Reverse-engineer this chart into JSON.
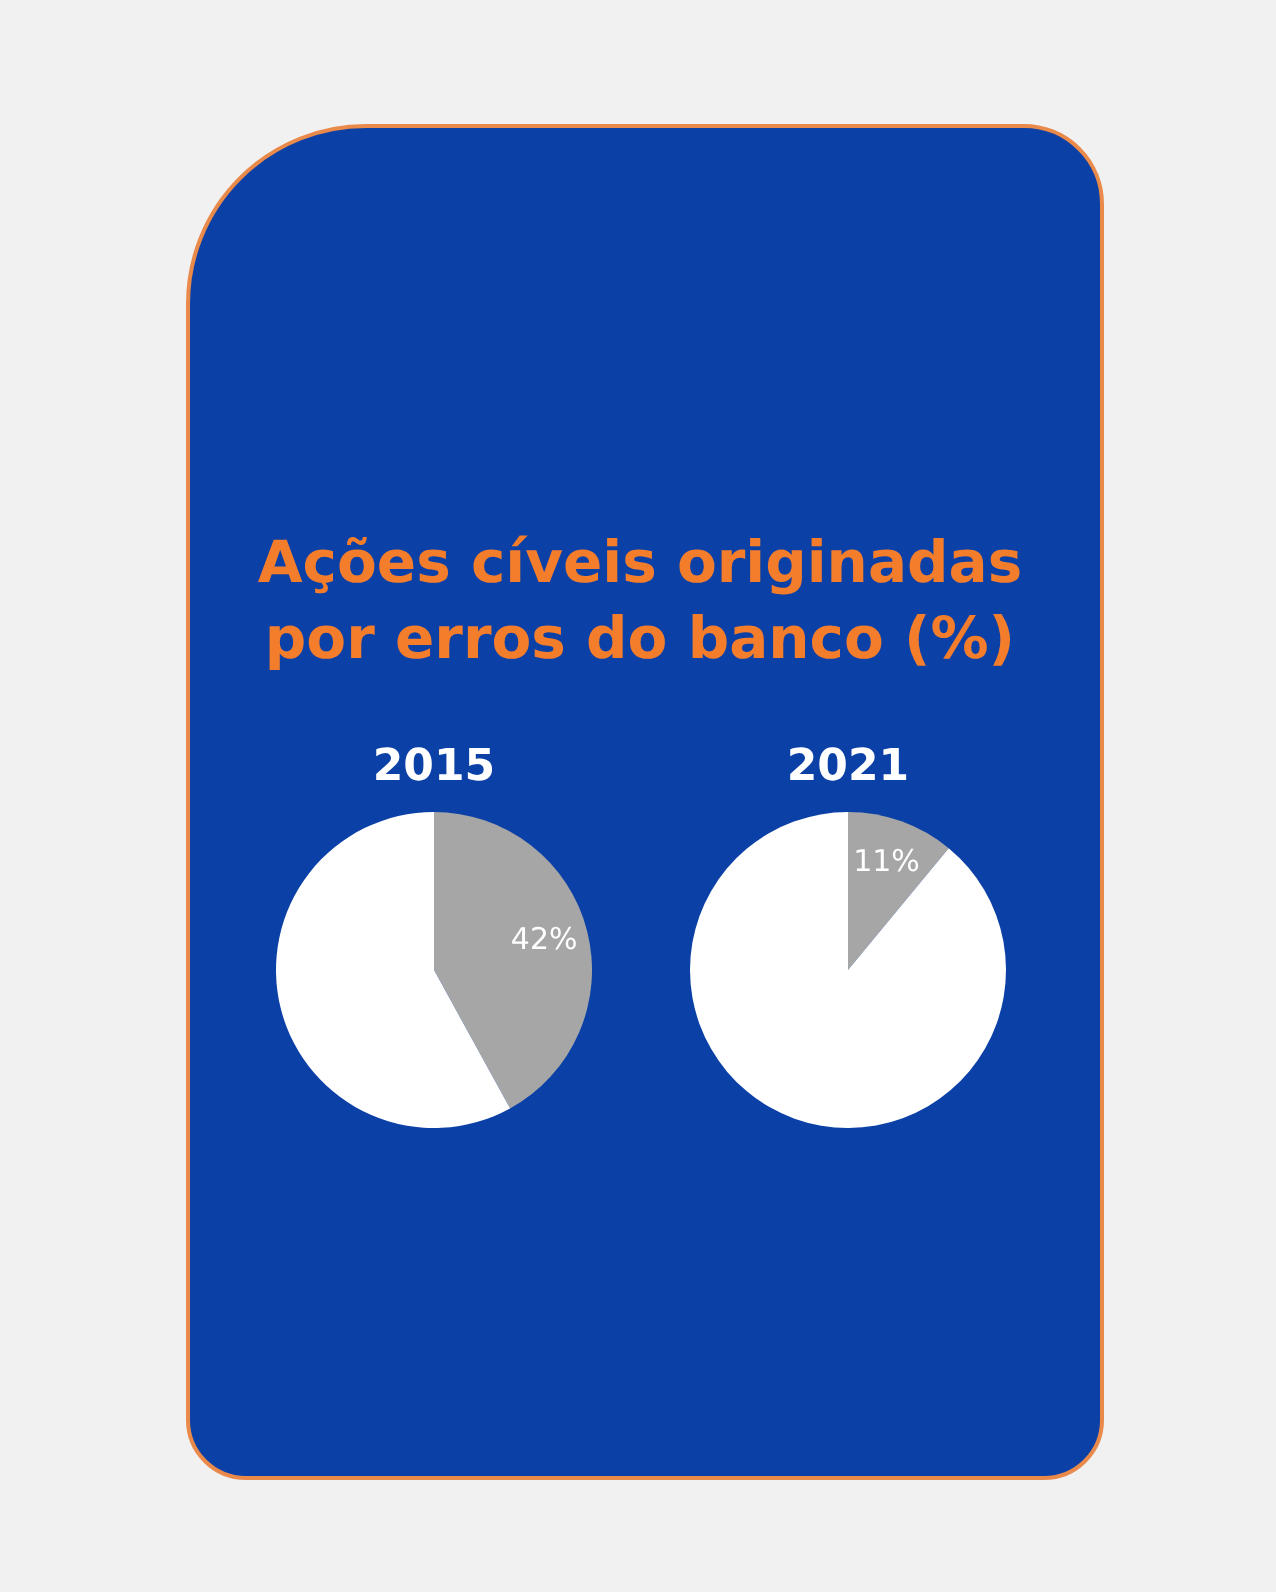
{
  "chart_data": [
    {
      "type": "other",
      "title": "Ações cíveis originadas por erros do banco (%)"
    },
    {
      "type": "pie",
      "title": "2015",
      "categories": [
        null,
        null
      ],
      "values": [
        42,
        58
      ],
      "colors": [
        "#a6a6a6",
        "#ffffff"
      ],
      "value_labels": [
        "42%",
        null
      ]
    },
    {
      "type": "pie",
      "title": "2021",
      "categories": [
        null,
        null
      ],
      "values": [
        11,
        89
      ],
      "colors": [
        "#a6a6a6",
        "#ffffff"
      ],
      "value_labels": [
        "11%",
        null
      ]
    }
  ]
}
